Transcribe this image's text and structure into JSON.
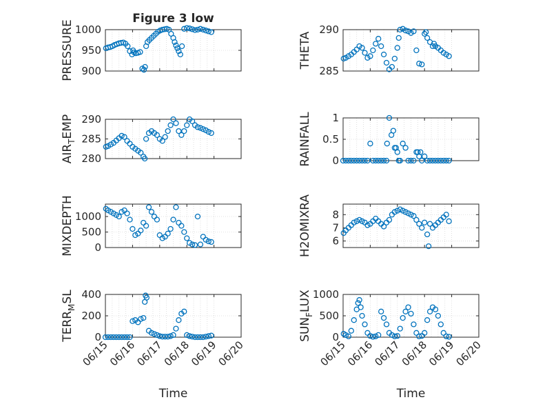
{
  "figure": {
    "title": "Figure 3 low",
    "time_label": "Time",
    "x_ticks": [
      "06/15",
      "06/16",
      "06/17",
      "06/18",
      "06/19",
      "06/20"
    ],
    "marker_color": "#0072bd"
  },
  "chart_data": [
    {
      "type": "scatter",
      "ylabel": "PRESSURE",
      "title": "Figure 3 low",
      "xlim": [
        0,
        5
      ],
      "ylim": [
        900,
        1000
      ],
      "yticks": [
        900,
        950,
        1000
      ],
      "grid": true,
      "marker": "circle",
      "x": [
        0.02,
        0.1,
        0.18,
        0.26,
        0.34,
        0.42,
        0.5,
        0.58,
        0.66,
        0.74,
        0.82,
        0.9,
        0.98,
        1.02,
        1.06,
        1.12,
        1.2,
        1.28,
        1.36,
        1.42,
        1.46,
        1.5,
        1.55,
        1.62,
        1.7,
        1.78,
        1.86,
        1.94,
        2.02,
        2.1,
        2.18,
        2.26,
        2.34,
        2.42,
        2.5,
        2.55,
        2.6,
        2.65,
        2.7,
        2.76,
        2.82,
        2.9,
        3.0,
        3.1,
        3.2,
        3.3,
        3.4,
        3.5,
        3.6,
        3.7,
        3.8,
        3.9
      ],
      "y": [
        955,
        957,
        958,
        960,
        963,
        965,
        967,
        968,
        969,
        966,
        960,
        948,
        940,
        950,
        945,
        943,
        944,
        946,
        906,
        903,
        910,
        960,
        970,
        975,
        980,
        985,
        990,
        995,
        998,
        1000,
        1001,
        1002,
        1000,
        990,
        980,
        970,
        962,
        955,
        948,
        940,
        960,
        1002,
        1004,
        1003,
        1001,
        999,
        1000,
        1002,
        1000,
        998,
        996,
        994
      ]
    },
    {
      "type": "scatter",
      "ylabel": "THETA",
      "xlim": [
        0,
        5
      ],
      "ylim": [
        285,
        290
      ],
      "yticks": [
        285,
        290
      ],
      "grid": true,
      "marker": "circle",
      "x": [
        0.02,
        0.1,
        0.2,
        0.3,
        0.4,
        0.5,
        0.6,
        0.7,
        0.8,
        0.9,
        1.0,
        1.1,
        1.2,
        1.3,
        1.4,
        1.5,
        1.6,
        1.7,
        1.8,
        1.9,
        2.0,
        2.05,
        2.1,
        2.2,
        2.3,
        2.4,
        2.5,
        2.6,
        2.7,
        2.8,
        2.9,
        3.0,
        3.05,
        3.1,
        3.2,
        3.3,
        3.35,
        3.4,
        3.5,
        3.6,
        3.7,
        3.8,
        3.9
      ],
      "y": [
        286.5,
        286.6,
        286.8,
        287.0,
        287.3,
        287.6,
        288.0,
        287.8,
        287.2,
        286.6,
        286.8,
        287.5,
        288.3,
        288.9,
        288.0,
        287.0,
        286.0,
        285.2,
        285.5,
        286.5,
        287.8,
        289.0,
        290.0,
        290.1,
        289.9,
        289.8,
        289.6,
        289.8,
        287.5,
        285.9,
        285.8,
        289.5,
        289.7,
        289.0,
        288.5,
        288.0,
        288.3,
        288.0,
        287.8,
        287.5,
        287.2,
        287.0,
        286.8
      ]
    },
    {
      "type": "scatter",
      "ylabel": "AIR_TEMP",
      "xlim": [
        0,
        5
      ],
      "ylim": [
        280,
        290
      ],
      "yticks": [
        280,
        285,
        290
      ],
      "grid": true,
      "marker": "circle",
      "x": [
        0.02,
        0.1,
        0.2,
        0.3,
        0.4,
        0.5,
        0.6,
        0.7,
        0.8,
        0.9,
        1.0,
        1.1,
        1.2,
        1.3,
        1.4,
        1.45,
        1.5,
        1.6,
        1.7,
        1.8,
        1.9,
        2.0,
        2.1,
        2.2,
        2.3,
        2.4,
        2.5,
        2.6,
        2.7,
        2.8,
        2.9,
        3.0,
        3.1,
        3.2,
        3.3,
        3.4,
        3.5,
        3.6,
        3.7,
        3.8,
        3.9
      ],
      "y": [
        283.0,
        283.2,
        283.6,
        284.0,
        284.6,
        285.2,
        285.8,
        285.5,
        284.5,
        283.8,
        283.0,
        282.5,
        282.0,
        281.5,
        280.5,
        280.0,
        285.0,
        286.5,
        287.0,
        286.5,
        286.0,
        285.0,
        284.5,
        285.5,
        287.0,
        288.5,
        290.0,
        289.0,
        287.0,
        286.0,
        287.0,
        288.5,
        290.0,
        289.5,
        288.5,
        288.0,
        287.8,
        287.5,
        287.2,
        286.8,
        286.5
      ]
    },
    {
      "type": "scatter",
      "ylabel": "RAINFALL",
      "xlim": [
        0,
        5
      ],
      "ylim": [
        0,
        1
      ],
      "yticks": [
        0,
        0.5,
        1
      ],
      "grid": true,
      "marker": "circle",
      "x": [
        0.0,
        0.1,
        0.2,
        0.3,
        0.4,
        0.5,
        0.6,
        0.7,
        0.8,
        0.9,
        1.0,
        1.1,
        1.2,
        1.3,
        1.4,
        1.5,
        1.6,
        1.62,
        1.7,
        1.78,
        1.85,
        1.9,
        1.95,
        2.0,
        2.05,
        2.1,
        2.2,
        2.3,
        2.4,
        2.5,
        2.6,
        2.7,
        2.75,
        2.8,
        2.85,
        2.9,
        3.0,
        3.1,
        3.2,
        3.3,
        3.4,
        3.5,
        3.6,
        3.7,
        3.8,
        3.9
      ],
      "y": [
        0,
        0,
        0,
        0,
        0,
        0,
        0,
        0,
        0,
        0,
        0.4,
        0,
        0,
        0,
        0,
        0,
        0,
        0.4,
        1.0,
        0.6,
        0.7,
        0.3,
        0.3,
        0.2,
        0,
        0,
        0.4,
        0.3,
        0,
        0,
        0,
        0.2,
        0.2,
        0.1,
        0.2,
        0,
        0.1,
        0,
        0,
        0,
        0,
        0,
        0,
        0,
        0,
        0
      ]
    },
    {
      "type": "scatter",
      "ylabel": "MIXDEPTH",
      "xlim": [
        0,
        5
      ],
      "ylim": [
        0,
        1400
      ],
      "yticks": [
        0,
        500,
        1000
      ],
      "grid": true,
      "marker": "circle",
      "x": [
        0.02,
        0.1,
        0.2,
        0.3,
        0.4,
        0.5,
        0.6,
        0.7,
        0.8,
        0.9,
        1.0,
        1.1,
        1.2,
        1.3,
        1.4,
        1.5,
        1.6,
        1.7,
        1.8,
        1.9,
        2.0,
        2.1,
        2.2,
        2.3,
        2.4,
        2.5,
        2.6,
        2.7,
        2.8,
        2.9,
        3.0,
        3.1,
        3.2,
        3.3,
        3.4,
        3.5,
        3.6,
        3.7,
        3.8,
        3.9
      ],
      "y": [
        1250,
        1200,
        1150,
        1100,
        1050,
        1000,
        1150,
        1200,
        1100,
        900,
        600,
        400,
        450,
        550,
        800,
        700,
        1300,
        1150,
        1000,
        900,
        400,
        300,
        350,
        450,
        600,
        900,
        1300,
        800,
        700,
        500,
        300,
        150,
        100,
        80,
        1000,
        100,
        350,
        250,
        200,
        180
      ]
    },
    {
      "type": "scatter",
      "ylabel": "H2OMIXRA",
      "xlim": [
        0,
        5
      ],
      "ylim": [
        5.5,
        8.8
      ],
      "yticks": [
        6,
        7,
        8
      ],
      "grid": true,
      "marker": "circle",
      "x": [
        0.02,
        0.1,
        0.2,
        0.3,
        0.4,
        0.5,
        0.6,
        0.7,
        0.8,
        0.9,
        1.0,
        1.1,
        1.2,
        1.3,
        1.4,
        1.5,
        1.6,
        1.7,
        1.8,
        1.9,
        2.0,
        2.1,
        2.2,
        2.3,
        2.4,
        2.5,
        2.6,
        2.7,
        2.8,
        2.9,
        3.0,
        3.1,
        3.15,
        3.2,
        3.3,
        3.4,
        3.5,
        3.6,
        3.7,
        3.8,
        3.9
      ],
      "y": [
        6.6,
        6.8,
        7.0,
        7.2,
        7.4,
        7.5,
        7.6,
        7.5,
        7.4,
        7.2,
        7.3,
        7.5,
        7.7,
        7.5,
        7.3,
        7.1,
        7.4,
        7.6,
        8.0,
        8.2,
        8.3,
        8.4,
        8.3,
        8.2,
        8.1,
        8.0,
        7.9,
        7.6,
        7.3,
        7.0,
        7.4,
        6.5,
        5.6,
        7.3,
        7.0,
        7.2,
        7.4,
        7.6,
        7.8,
        8.0,
        7.5
      ]
    },
    {
      "type": "scatter",
      "ylabel": "TERR_MSL",
      "xlim": [
        0,
        5
      ],
      "ylim": [
        0,
        400
      ],
      "yticks": [
        0,
        200,
        400
      ],
      "grid": true,
      "marker": "circle",
      "x": [
        0.0,
        0.1,
        0.2,
        0.3,
        0.4,
        0.5,
        0.6,
        0.7,
        0.8,
        0.9,
        1.0,
        1.1,
        1.2,
        1.3,
        1.4,
        1.45,
        1.48,
        1.52,
        1.6,
        1.7,
        1.8,
        1.9,
        2.0,
        2.1,
        2.2,
        2.3,
        2.4,
        2.5,
        2.6,
        2.7,
        2.8,
        2.9,
        3.0,
        3.1,
        3.2,
        3.3,
        3.4,
        3.5,
        3.6,
        3.7,
        3.8,
        3.9
      ],
      "y": [
        0,
        0,
        0,
        0,
        0,
        0,
        0,
        0,
        0,
        0,
        150,
        160,
        140,
        170,
        180,
        330,
        390,
        370,
        60,
        40,
        30,
        20,
        10,
        5,
        5,
        5,
        10,
        20,
        80,
        160,
        220,
        240,
        20,
        10,
        5,
        0,
        0,
        0,
        0,
        5,
        10,
        15
      ]
    },
    {
      "type": "scatter",
      "ylabel": "SUN_FLUX",
      "xlim": [
        0,
        5
      ],
      "ylim": [
        0,
        1000
      ],
      "yticks": [
        0,
        500,
        1000
      ],
      "grid": true,
      "marker": "circle",
      "x": [
        0.02,
        0.1,
        0.2,
        0.3,
        0.4,
        0.5,
        0.55,
        0.6,
        0.65,
        0.7,
        0.8,
        0.9,
        1.0,
        1.1,
        1.2,
        1.3,
        1.4,
        1.5,
        1.6,
        1.7,
        1.8,
        1.9,
        2.0,
        2.1,
        2.2,
        2.3,
        2.4,
        2.5,
        2.6,
        2.7,
        2.8,
        2.9,
        3.0,
        3.1,
        3.2,
        3.3,
        3.4,
        3.5,
        3.6,
        3.7,
        3.8,
        3.9
      ],
      "y": [
        80,
        50,
        20,
        150,
        400,
        650,
        800,
        870,
        700,
        500,
        300,
        100,
        30,
        10,
        20,
        50,
        600,
        450,
        300,
        100,
        50,
        20,
        30,
        200,
        450,
        600,
        700,
        550,
        300,
        100,
        20,
        30,
        100,
        400,
        600,
        700,
        650,
        500,
        300,
        100,
        20,
        10
      ]
    }
  ]
}
